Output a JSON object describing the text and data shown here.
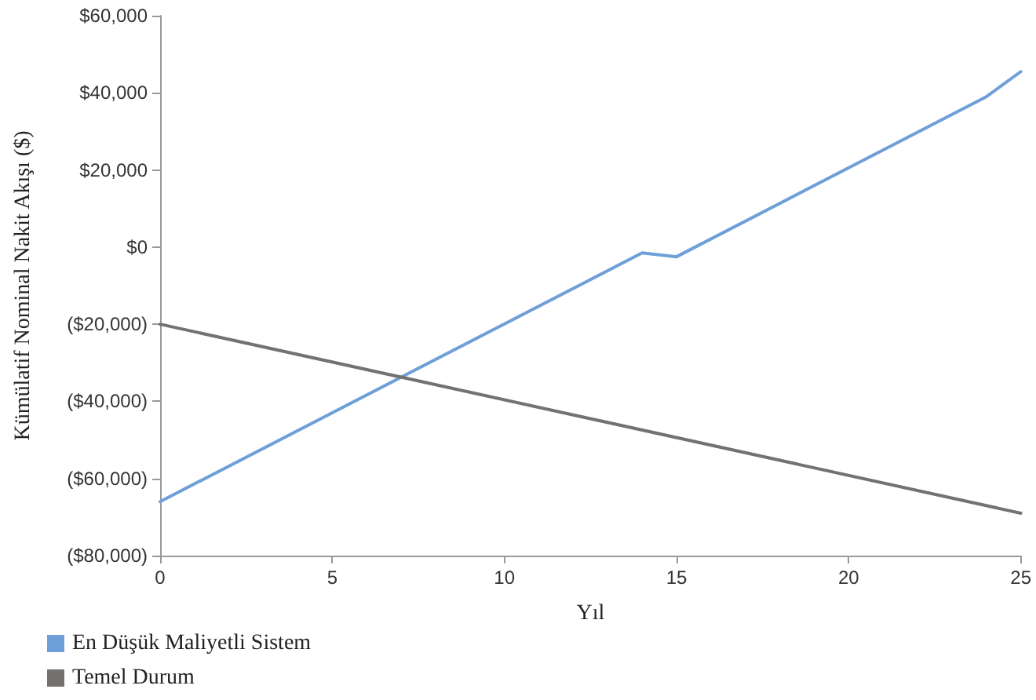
{
  "chart_data": {
    "type": "line",
    "xlabel": "Yıl",
    "ylabel": "Kümülatif Nominal Nakit Akışı ($)",
    "series": [
      {
        "name": "En Düşük Maliyetli Sistem",
        "color": "#6f9fd8",
        "x": [
          0,
          14,
          15,
          24,
          25
        ],
        "values": [
          -66000,
          -1500,
          -2500,
          39000,
          45500
        ]
      },
      {
        "name": "Temel Durum",
        "color": "#767171",
        "x": [
          0,
          25
        ],
        "values": [
          -20000,
          -69000
        ]
      }
    ],
    "xlim": [
      0,
      25
    ],
    "xticks": [
      0,
      5,
      10,
      15,
      20,
      25
    ],
    "ylim": [
      -80000,
      60000
    ],
    "yticks": [
      {
        "value": -80000,
        "label": "($80,000)"
      },
      {
        "value": -60000,
        "label": "($60,000)"
      },
      {
        "value": -40000,
        "label": "($40,000)"
      },
      {
        "value": -20000,
        "label": "($20,000)"
      },
      {
        "value": 0,
        "label": "$0"
      },
      {
        "value": 20000,
        "label": "$20,000"
      },
      {
        "value": 40000,
        "label": "$40,000"
      },
      {
        "value": 60000,
        "label": "$60,000"
      }
    ],
    "grid": false,
    "legend": "bottom left"
  }
}
